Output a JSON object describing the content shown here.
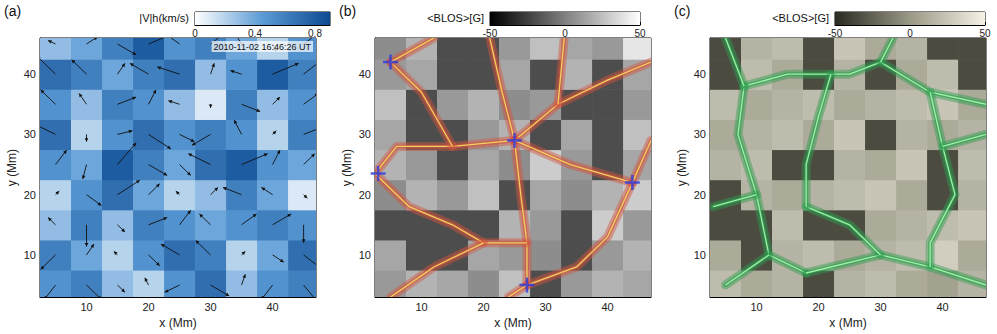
{
  "chart_data": [
    {
      "type": "vector_map",
      "panel_label": "(a)",
      "annotation": "2010-11-02 16:46:26 UT",
      "x_label": "x (Mm)",
      "y_label": "y (Mm)",
      "xlim": [
        2.5,
        47
      ],
      "ylim": [
        3,
        46
      ],
      "xticks": [
        10,
        20,
        30,
        40
      ],
      "yticks": [
        10,
        20,
        30,
        40
      ],
      "cells": {
        "x": [
          5,
          10,
          15,
          20,
          25,
          30,
          35,
          40,
          45
        ],
        "y": [
          5,
          10,
          15,
          20,
          25,
          30,
          35,
          40,
          45
        ],
        "values": [
          [
            0.5,
            0.6,
            0.3,
            0.2,
            0.5,
            0.7,
            0.3,
            0.5,
            0.6
          ],
          [
            0.6,
            0.4,
            0.2,
            0.5,
            0.7,
            0.6,
            0.2,
            0.4,
            0.7
          ],
          [
            0.3,
            0.6,
            0.3,
            0.6,
            0.5,
            0.4,
            0.5,
            0.6,
            0.5
          ],
          [
            0.2,
            0.5,
            0.7,
            0.4,
            0.2,
            0.3,
            0.6,
            0.4,
            0.1
          ],
          [
            0.5,
            0.4,
            0.8,
            0.6,
            0.4,
            0.7,
            0.8,
            0.5,
            0.4
          ],
          [
            0.7,
            0.2,
            0.5,
            0.7,
            0.5,
            0.6,
            0.5,
            0.2,
            0.6
          ],
          [
            0.5,
            0.3,
            0.6,
            0.5,
            0.3,
            0.1,
            0.6,
            0.3,
            0.5
          ],
          [
            0.7,
            0.6,
            0.4,
            0.6,
            0.7,
            0.3,
            0.5,
            0.8,
            0.6
          ],
          [
            0.3,
            0.4,
            0.6,
            0.8,
            0.5,
            0.6,
            0.4,
            0.2,
            0.5
          ]
        ]
      },
      "arrows": {
        "u": [
          [
            -0.3,
            0.4,
            0.2,
            -0.1,
            -0.4,
            0.5,
            0.1,
            -0.3,
            0.4
          ],
          [
            -0.4,
            0.2,
            -0.1,
            0.3,
            -0.5,
            -0.4,
            0.1,
            0.3,
            0.5
          ],
          [
            -0.2,
            0.0,
            0.2,
            0.5,
            0.3,
            -0.3,
            0.4,
            0.5,
            0.0
          ],
          [
            0.1,
            0.4,
            0.6,
            0.3,
            -0.1,
            0.2,
            -0.5,
            -0.3,
            0.1
          ],
          [
            0.3,
            -0.1,
            0.5,
            0.5,
            0.3,
            -0.6,
            0.7,
            0.2,
            0.3
          ],
          [
            -0.6,
            0.0,
            0.4,
            0.6,
            0.4,
            -0.5,
            -0.2,
            0.1,
            0.5
          ],
          [
            -0.4,
            -0.2,
            0.5,
            0.2,
            -0.3,
            0.0,
            0.5,
            0.2,
            0.4
          ],
          [
            -0.5,
            -0.4,
            0.2,
            -0.5,
            -0.6,
            0.1,
            -0.3,
            0.7,
            0.5
          ],
          [
            -0.2,
            0.3,
            0.5,
            0.7,
            -0.4,
            0.5,
            -0.3,
            0.1,
            0.4
          ]
        ],
        "v": [
          [
            -0.4,
            -0.4,
            -0.2,
            0.2,
            -0.2,
            -0.3,
            0.3,
            -0.4,
            -0.5
          ],
          [
            -0.4,
            0.3,
            0.1,
            -0.3,
            0.3,
            0.4,
            0.1,
            -0.2,
            -0.4
          ],
          [
            0.2,
            -0.6,
            -0.2,
            0.2,
            0.4,
            0.3,
            0.3,
            0.3,
            -0.5
          ],
          [
            0.1,
            -0.3,
            0.4,
            0.3,
            0.1,
            0.2,
            0.2,
            0.2,
            -0.1
          ],
          [
            0.4,
            -0.4,
            0.6,
            -0.3,
            -0.3,
            0.3,
            0.3,
            0.4,
            0.3
          ],
          [
            0.3,
            -0.2,
            0.1,
            -0.4,
            -0.2,
            -0.3,
            0.4,
            0.1,
            0.2
          ],
          [
            0.4,
            0.3,
            0.2,
            0.4,
            0.1,
            -0.1,
            -0.2,
            0.2,
            0.3
          ],
          [
            0.5,
            0.4,
            0.3,
            0.3,
            0.2,
            0.3,
            0.1,
            0.3,
            0.4
          ],
          [
            0.1,
            0.2,
            -0.3,
            0.3,
            0.3,
            0.4,
            0.5,
            -0.2,
            0.3
          ]
        ]
      },
      "colorbar": {
        "label": "|V|h(km/s)",
        "range": [
          0,
          0.9
        ],
        "ticks": [
          0,
          0.4,
          0.8
        ]
      }
    },
    {
      "type": "magnetogram",
      "panel_label": "(b)",
      "x_label": "x (Mm)",
      "y_label": "y (Mm)",
      "xlim": [
        2.5,
        47
      ],
      "ylim": [
        3,
        46
      ],
      "xticks": [
        10,
        20,
        30,
        40
      ],
      "yticks": [
        10,
        20,
        30,
        40
      ],
      "cells": {
        "x": [
          5,
          10,
          15,
          20,
          25,
          30,
          35,
          40,
          45
        ],
        "y": [
          5,
          10,
          15,
          20,
          25,
          30,
          35,
          40,
          45
        ],
        "values": [
          [
            10,
            20,
            15,
            5,
            25,
            -20,
            10,
            20,
            15
          ],
          [
            15,
            -20,
            -20,
            15,
            10,
            5,
            -20,
            10,
            20
          ],
          [
            -20,
            -20,
            -20,
            -20,
            20,
            10,
            -20,
            30,
            10
          ],
          [
            5,
            20,
            10,
            25,
            -20,
            15,
            5,
            20,
            30
          ],
          [
            20,
            10,
            -20,
            15,
            5,
            30,
            10,
            -20,
            15
          ],
          [
            15,
            -20,
            -20,
            10,
            20,
            -20,
            15,
            -20,
            25
          ],
          [
            25,
            -20,
            10,
            20,
            5,
            10,
            -20,
            -20,
            10
          ],
          [
            10,
            15,
            -20,
            -20,
            15,
            -20,
            20,
            -20,
            15
          ],
          [
            5,
            20,
            -20,
            -20,
            10,
            25,
            15,
            10,
            40
          ]
        ]
      },
      "lanes": {
        "color": "#d2553f",
        "paths": [
          [
            [
              25,
              29
            ],
            [
              23,
              37
            ],
            [
              21,
              46
            ]
          ],
          [
            [
              25,
              29
            ],
            [
              32,
              35
            ],
            [
              40,
              39
            ],
            [
              47,
              42
            ]
          ],
          [
            [
              25,
              29
            ],
            [
              15,
              28
            ],
            [
              6,
              28
            ],
            [
              2.5,
              23.5
            ]
          ],
          [
            [
              25,
              29
            ],
            [
              26,
              20
            ],
            [
              27,
              12
            ],
            [
              27,
              5
            ]
          ],
          [
            [
              25,
              29
            ],
            [
              34,
              25
            ],
            [
              44,
              22
            ]
          ],
          [
            [
              5,
              42
            ],
            [
              10,
              37
            ],
            [
              15,
              28
            ]
          ],
          [
            [
              5,
              42
            ],
            [
              12,
              46
            ]
          ],
          [
            [
              2.5,
              23.5
            ],
            [
              8,
              18
            ],
            [
              15,
              15
            ],
            [
              20,
              12
            ],
            [
              27,
              12
            ]
          ],
          [
            [
              44,
              22
            ],
            [
              40,
              13
            ],
            [
              35,
              8
            ],
            [
              27,
              5
            ]
          ],
          [
            [
              44,
              22
            ],
            [
              47,
              29
            ]
          ],
          [
            [
              20,
              12
            ],
            [
              12,
              8
            ],
            [
              5,
              3
            ]
          ],
          [
            [
              27,
              5
            ],
            [
              24,
              3
            ]
          ],
          [
            [
              32,
              35
            ],
            [
              33,
              46
            ]
          ]
        ]
      },
      "points": {
        "x": [
          5,
          25,
          3,
          44,
          27
        ],
        "y": [
          42,
          29,
          23.5,
          22,
          5
        ],
        "marker": "cross",
        "color": "#2b3be0"
      },
      "colorbar": {
        "label": "<BLOS>[G]",
        "range": [
          -50,
          50
        ],
        "ticks": [
          -50,
          0,
          50
        ]
      }
    },
    {
      "type": "magnetogram",
      "panel_label": "(c)",
      "x_label": "x (Mm)",
      "y_label": "y (Mm)",
      "xlim": [
        2.5,
        47
      ],
      "ylim": [
        3,
        46
      ],
      "xticks": [
        10,
        20,
        30,
        40
      ],
      "yticks": [
        10,
        20,
        30,
        40
      ],
      "cells": {
        "x": [
          5,
          10,
          15,
          20,
          25,
          30,
          35,
          40,
          45
        ],
        "y": [
          5,
          10,
          15,
          20,
          25,
          30,
          35,
          40,
          45
        ],
        "values": [
          [
            20,
            10,
            15,
            -35,
            15,
            20,
            10,
            5,
            15
          ],
          [
            10,
            -35,
            15,
            20,
            10,
            15,
            20,
            30,
            10
          ],
          [
            -35,
            -35,
            20,
            -35,
            -35,
            10,
            15,
            20,
            25
          ],
          [
            -35,
            15,
            10,
            15,
            20,
            25,
            10,
            -35,
            15
          ],
          [
            15,
            20,
            -35,
            -35,
            15,
            10,
            25,
            -35,
            20
          ],
          [
            10,
            15,
            20,
            10,
            25,
            -35,
            15,
            10,
            15
          ],
          [
            20,
            10,
            15,
            20,
            10,
            15,
            20,
            25,
            10
          ],
          [
            -35,
            20,
            10,
            -35,
            15,
            -35,
            10,
            20,
            -35
          ],
          [
            -35,
            15,
            20,
            -35,
            25,
            10,
            15,
            -35,
            -35
          ]
        ]
      },
      "lanes": {
        "color": "#2e9e4f",
        "paths": [
          [
            [
              8,
              38
            ],
            [
              15,
              40
            ],
            [
              25,
              40
            ],
            [
              30,
              42
            ],
            [
              38,
              37
            ],
            [
              47,
              35
            ]
          ],
          [
            [
              8,
              38
            ],
            [
              7,
              30
            ],
            [
              10,
              20
            ],
            [
              12,
              10
            ],
            [
              18,
              7
            ]
          ],
          [
            [
              18,
              7
            ],
            [
              30,
              10
            ],
            [
              38,
              8
            ],
            [
              47,
              5
            ]
          ],
          [
            [
              38,
              37
            ],
            [
              40,
              28
            ],
            [
              42,
              20
            ],
            [
              38,
              12
            ],
            [
              38,
              8
            ]
          ],
          [
            [
              5,
              46
            ],
            [
              8,
              38
            ]
          ],
          [
            [
              30,
              42
            ],
            [
              32,
              46
            ]
          ],
          [
            [
              10,
              20
            ],
            [
              3,
              18
            ]
          ],
          [
            [
              40,
              28
            ],
            [
              47,
              30
            ]
          ],
          [
            [
              12,
              10
            ],
            [
              5,
              5
            ]
          ],
          [
            [
              18,
              18
            ],
            [
              25,
              15
            ],
            [
              30,
              10
            ]
          ],
          [
            [
              22,
              40
            ],
            [
              20,
              33
            ],
            [
              18,
              25
            ],
            [
              18,
              18
            ]
          ]
        ]
      },
      "colorbar": {
        "label": "<BLOS>[G]",
        "range": [
          -50,
          50
        ],
        "ticks": [
          -50,
          0,
          50
        ]
      }
    }
  ]
}
